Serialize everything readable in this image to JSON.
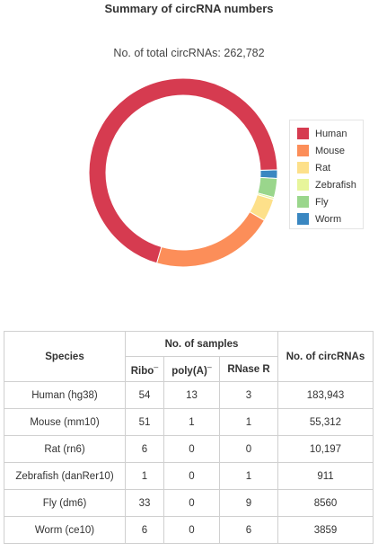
{
  "title": "Summary of circRNA numbers",
  "subtitle": "No. of total circRNAs: 262,782",
  "chart_data": {
    "type": "pie",
    "style": "donut",
    "categories": [
      "Human",
      "Mouse",
      "Rat",
      "Zebrafish",
      "Fly",
      "Worm"
    ],
    "values": [
      183943,
      55312,
      10197,
      911,
      8560,
      3859
    ],
    "colors": [
      "#d63b50",
      "#fc8e59",
      "#fde08a",
      "#e7f59b",
      "#9ad68c",
      "#3a87c1"
    ],
    "legend_placement": "right"
  },
  "table": {
    "header": {
      "species": "Species",
      "samples": "No. of samples",
      "circ": "No. of circRNAs",
      "ribo": "Ribo",
      "polya": "poly(A)",
      "rnaser": "RNase R",
      "neg_mark": "–"
    },
    "rows": [
      {
        "species": "Human (hg38)",
        "ribo": "54",
        "polya": "13",
        "rnaser": "3",
        "circ": "183,943"
      },
      {
        "species": "Mouse (mm10)",
        "ribo": "51",
        "polya": "1",
        "rnaser": "1",
        "circ": "55,312"
      },
      {
        "species": "Rat (rn6)",
        "ribo": "6",
        "polya": "0",
        "rnaser": "0",
        "circ": "10,197"
      },
      {
        "species": "Zebrafish (danRer10)",
        "ribo": "1",
        "polya": "0",
        "rnaser": "1",
        "circ": "911"
      },
      {
        "species": "Fly (dm6)",
        "ribo": "33",
        "polya": "0",
        "rnaser": "9",
        "circ": "8560"
      },
      {
        "species": "Worm (ce10)",
        "ribo": "6",
        "polya": "0",
        "rnaser": "6",
        "circ": "3859"
      }
    ]
  }
}
